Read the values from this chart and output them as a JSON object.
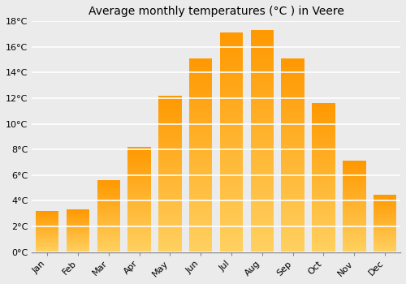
{
  "title": "Average monthly temperatures (°C ) in Veere",
  "months": [
    "Jan",
    "Feb",
    "Mar",
    "Apr",
    "May",
    "Jun",
    "Jul",
    "Aug",
    "Sep",
    "Oct",
    "Nov",
    "Dec"
  ],
  "values": [
    3.2,
    3.3,
    5.6,
    8.2,
    12.2,
    15.1,
    17.1,
    17.3,
    15.1,
    11.6,
    7.1,
    4.5
  ],
  "bar_color": "#FFA500",
  "bar_color_light": "#FFD060",
  "ylim": [
    0,
    18
  ],
  "yticks": [
    0,
    2,
    4,
    6,
    8,
    10,
    12,
    14,
    16,
    18
  ],
  "ytick_labels": [
    "0°C",
    "2°C",
    "4°C",
    "6°C",
    "8°C",
    "10°C",
    "12°C",
    "14°C",
    "16°C",
    "18°C"
  ],
  "bg_color": "#EBEBEB",
  "grid_color": "#FFFFFF",
  "title_fontsize": 10,
  "tick_fontsize": 8,
  "bar_width": 0.75
}
